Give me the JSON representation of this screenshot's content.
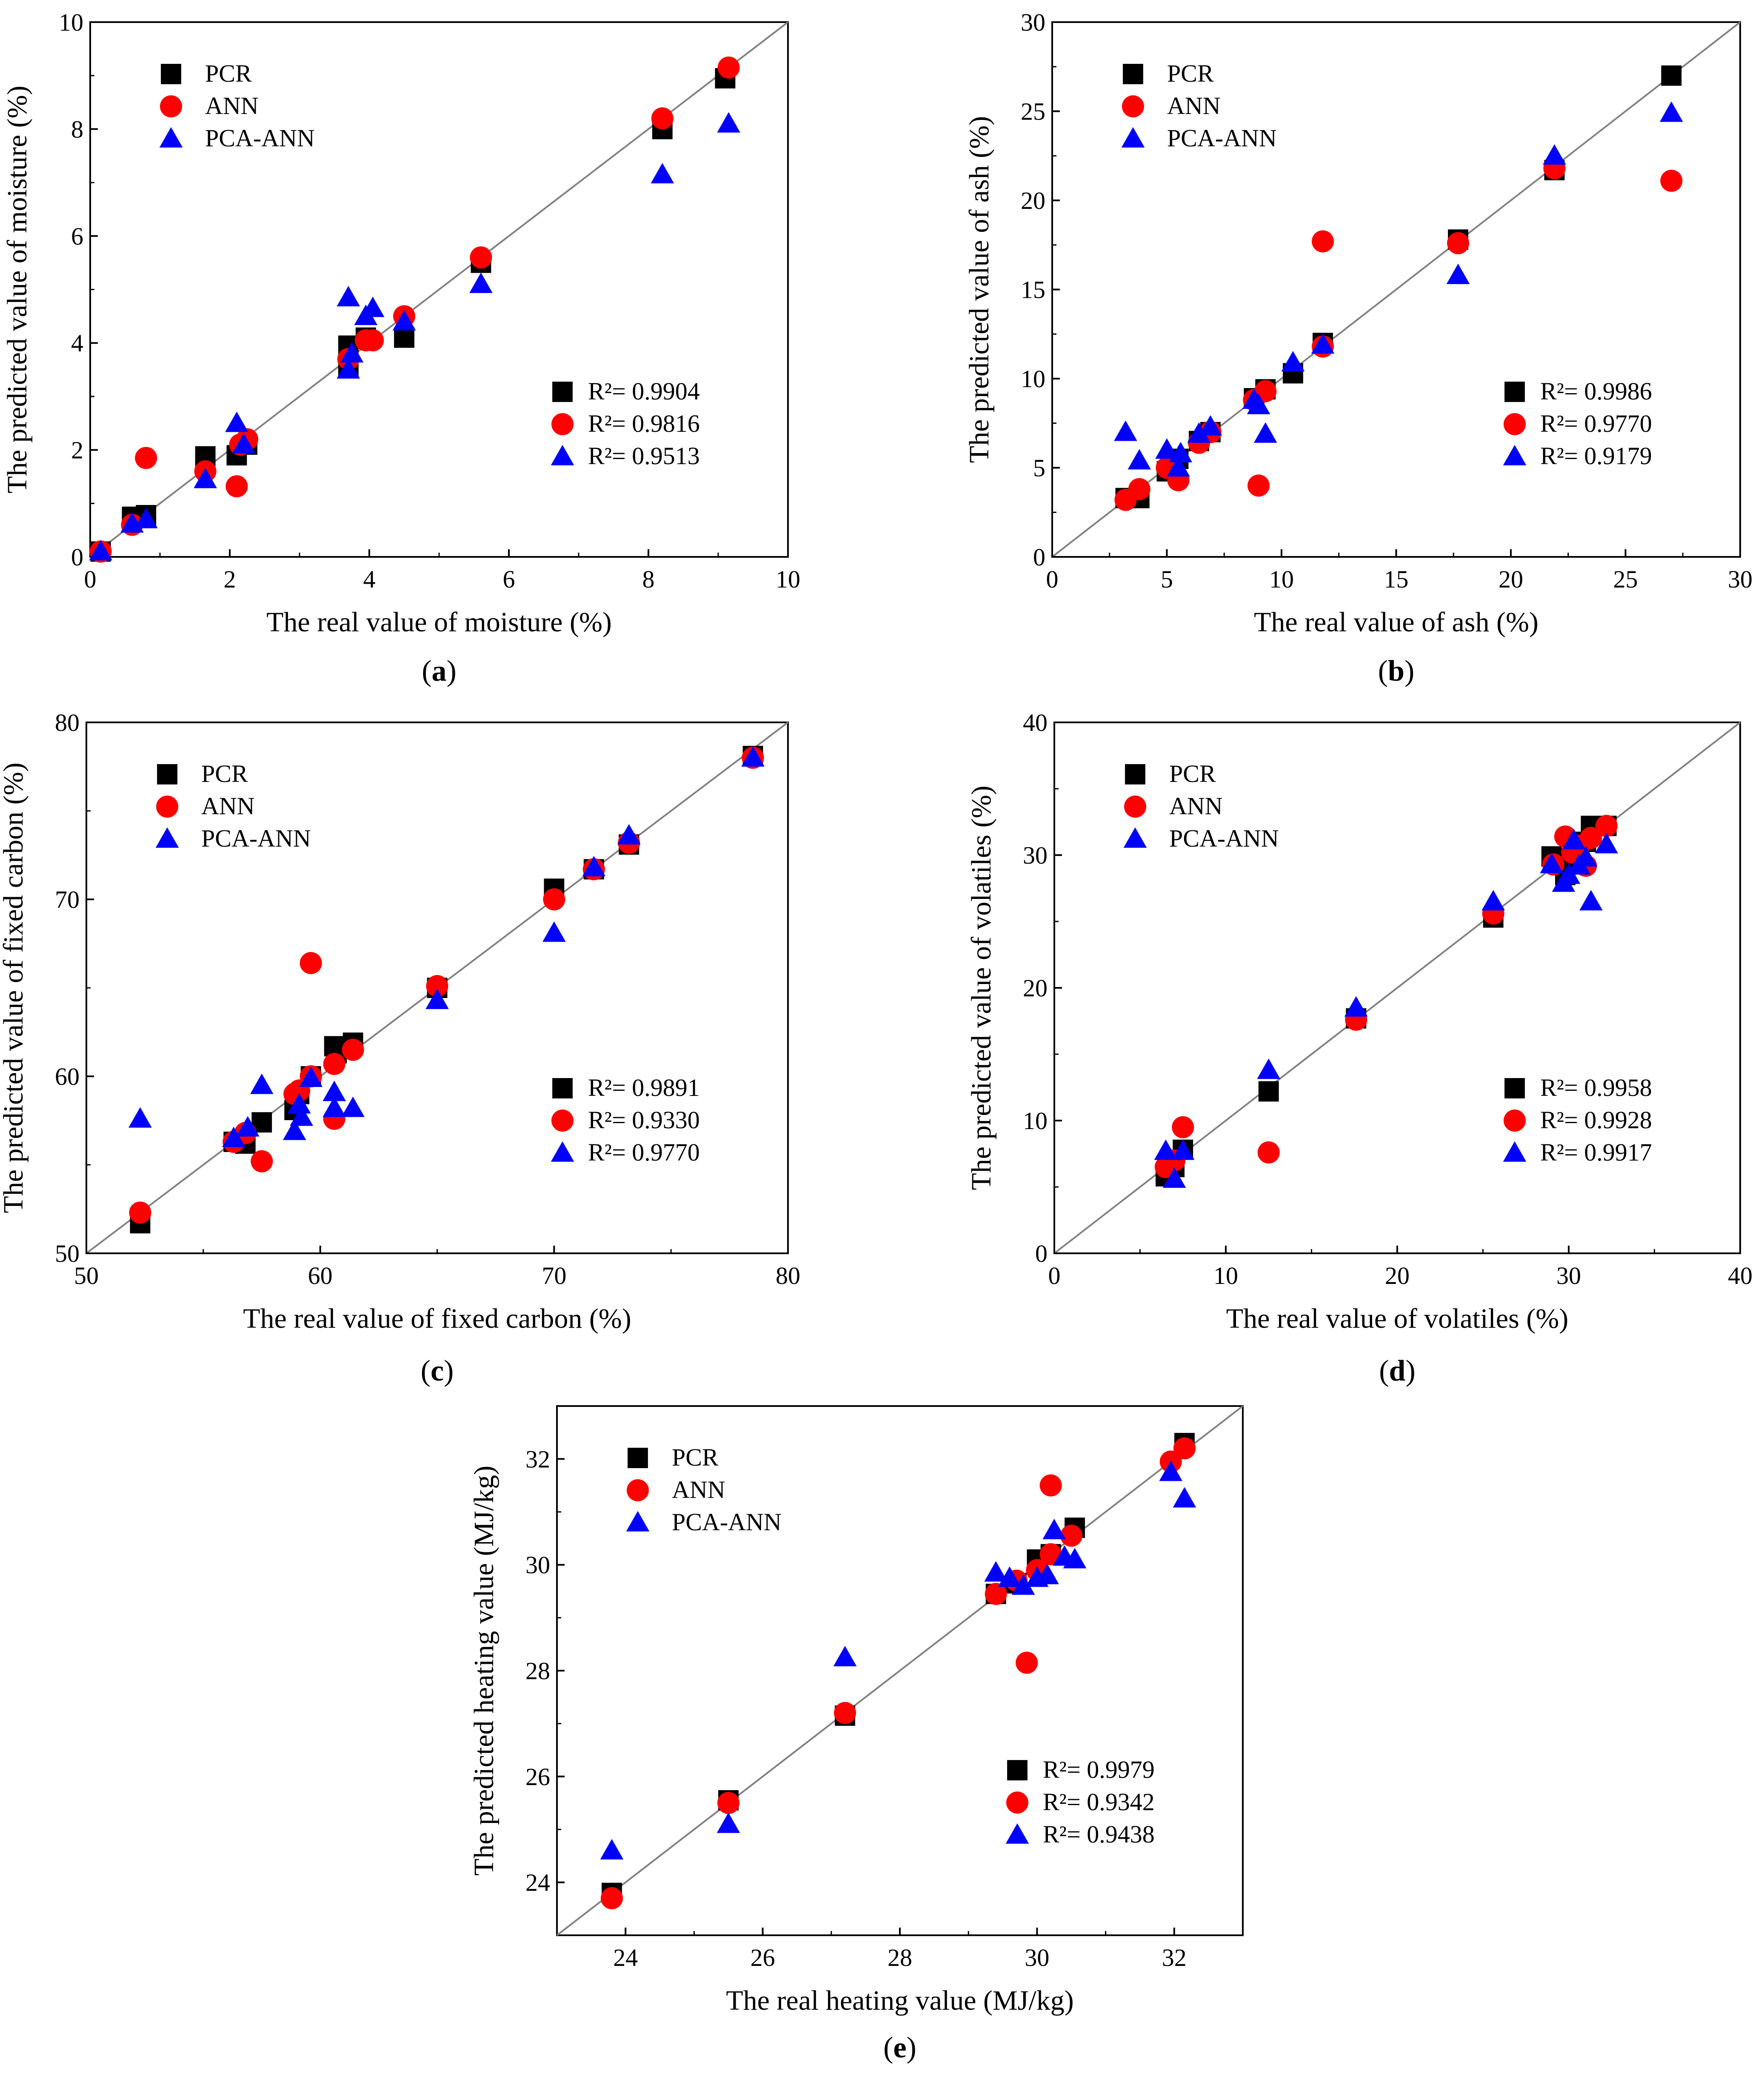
{
  "figure": {
    "colors": {
      "PCR": "#000000",
      "ANN": "#ff0000",
      "PCA-ANN": "#0000ff",
      "identity_line": "#808080"
    },
    "marker_shapes": {
      "PCR": "square",
      "ANN": "circle",
      "PCA-ANN": "triangle"
    }
  },
  "chart_data": [
    {
      "type": "scatter",
      "caption": "a",
      "xlabel": "The real value of moisture (%)",
      "ylabel": "The predicted value of moisture (%)",
      "xlim": [
        0,
        10
      ],
      "ylim": [
        0,
        10
      ],
      "xticks": [
        "0",
        "2",
        "4",
        "6",
        "8",
        "10"
      ],
      "yticks": [
        "0",
        "2",
        "4",
        "6",
        "8",
        "10"
      ],
      "legend": [
        "PCR",
        "ANN",
        "PCA-ANN"
      ],
      "r2": [
        "R²= 0.9904",
        "R²= 0.9816",
        "R²= 0.9513"
      ],
      "series": [
        {
          "name": "PCR",
          "points": [
            [
              0.15,
              0.1
            ],
            [
              0.6,
              0.75
            ],
            [
              0.8,
              0.78
            ],
            [
              1.65,
              1.88
            ],
            [
              2.1,
              1.9
            ],
            [
              2.25,
              2.1
            ],
            [
              3.7,
              3.95
            ],
            [
              3.7,
              3.55
            ],
            [
              3.95,
              4.1
            ],
            [
              4.5,
              4.1
            ],
            [
              5.6,
              5.5
            ],
            [
              8.2,
              8.0
            ],
            [
              9.1,
              8.95
            ]
          ]
        },
        {
          "name": "ANN",
          "points": [
            [
              0.15,
              0.1
            ],
            [
              0.6,
              0.6
            ],
            [
              0.8,
              1.85
            ],
            [
              1.65,
              1.6
            ],
            [
              2.1,
              1.32
            ],
            [
              2.15,
              2.1
            ],
            [
              2.25,
              2.2
            ],
            [
              3.7,
              3.7
            ],
            [
              3.95,
              4.05
            ],
            [
              4.05,
              4.05
            ],
            [
              4.5,
              4.5
            ],
            [
              5.6,
              5.6
            ],
            [
              8.2,
              8.2
            ],
            [
              9.15,
              9.15
            ]
          ]
        },
        {
          "name": "PCA-ANN",
          "points": [
            [
              0.15,
              0.1
            ],
            [
              0.6,
              0.62
            ],
            [
              0.8,
              0.7
            ],
            [
              1.65,
              1.45
            ],
            [
              2.1,
              2.5
            ],
            [
              2.2,
              2.1
            ],
            [
              3.7,
              4.85
            ],
            [
              3.7,
              3.5
            ],
            [
              3.75,
              3.8
            ],
            [
              3.95,
              4.5
            ],
            [
              4.05,
              4.65
            ],
            [
              4.5,
              4.4
            ],
            [
              5.6,
              5.1
            ],
            [
              8.2,
              7.15
            ],
            [
              9.15,
              8.1
            ]
          ]
        }
      ]
    },
    {
      "type": "scatter",
      "caption": "b",
      "xlabel": "The real value of ash (%)",
      "ylabel": "The predicted value of ash (%)",
      "xlim": [
        0,
        30
      ],
      "ylim": [
        0,
        30
      ],
      "xticks": [
        "0",
        "5",
        "10",
        "15",
        "20",
        "25",
        "30"
      ],
      "yticks": [
        "0",
        "5",
        "10",
        "15",
        "20",
        "25",
        "30"
      ],
      "legend": [
        "PCR",
        "ANN",
        "PCA-ANN"
      ],
      "r2": [
        "R²= 0.9986",
        "R²= 0.9770",
        "R²= 0.9179"
      ],
      "series": [
        {
          "name": "PCR",
          "points": [
            [
              3.2,
              3.3
            ],
            [
              3.8,
              3.3
            ],
            [
              5.0,
              4.8
            ],
            [
              5.5,
              5.5
            ],
            [
              6.4,
              6.5
            ],
            [
              6.9,
              7.0
            ],
            [
              8.8,
              8.9
            ],
            [
              9.3,
              9.4
            ],
            [
              10.5,
              10.3
            ],
            [
              11.8,
              12.0
            ],
            [
              17.7,
              17.8
            ],
            [
              21.9,
              21.7
            ],
            [
              27.0,
              27.0
            ]
          ]
        },
        {
          "name": "ANN",
          "points": [
            [
              3.2,
              3.2
            ],
            [
              3.8,
              3.8
            ],
            [
              5.0,
              5.0
            ],
            [
              5.5,
              4.3
            ],
            [
              6.4,
              6.4
            ],
            [
              6.9,
              7.0
            ],
            [
              8.8,
              8.8
            ],
            [
              9.0,
              4.0
            ],
            [
              9.3,
              9.3
            ],
            [
              11.8,
              17.7
            ],
            [
              11.8,
              11.8
            ],
            [
              17.7,
              17.6
            ],
            [
              21.9,
              21.8
            ],
            [
              27.0,
              21.1
            ]
          ]
        },
        {
          "name": "PCA-ANN",
          "points": [
            [
              3.2,
              7.0
            ],
            [
              3.8,
              5.4
            ],
            [
              5.0,
              6.0
            ],
            [
              5.5,
              5.0
            ],
            [
              5.6,
              5.8
            ],
            [
              6.4,
              6.9
            ],
            [
              6.9,
              7.3
            ],
            [
              8.8,
              8.8
            ],
            [
              9.0,
              8.5
            ],
            [
              9.3,
              6.9
            ],
            [
              10.5,
              10.9
            ],
            [
              11.8,
              11.9
            ],
            [
              17.7,
              15.8
            ],
            [
              21.9,
              22.5
            ],
            [
              27.0,
              24.9
            ]
          ]
        }
      ]
    },
    {
      "type": "scatter",
      "caption": "c",
      "xlabel": "The real value of fixed carbon (%)",
      "ylabel": "The predicted value of fixed carbon (%)",
      "xlim": [
        50,
        80
      ],
      "ylim": [
        50,
        80
      ],
      "xticks": [
        "50",
        "60",
        "70",
        "80"
      ],
      "yticks": [
        "50",
        "60",
        "70",
        "80"
      ],
      "legend": [
        "PCR",
        "ANN",
        "PCA-ANN"
      ],
      "r2": [
        "R²= 0.9891",
        "R²= 0.9330",
        "R²= 0.9770"
      ],
      "series": [
        {
          "name": "PCR",
          "points": [
            [
              52.3,
              51.7
            ],
            [
              56.3,
              56.3
            ],
            [
              56.8,
              56.2
            ],
            [
              57.5,
              57.4
            ],
            [
              58.9,
              58.1
            ],
            [
              59.1,
              59.0
            ],
            [
              59.6,
              60.0
            ],
            [
              60.6,
              61.7
            ],
            [
              60.7,
              61.3
            ],
            [
              61.4,
              61.9
            ],
            [
              65.0,
              65.0
            ],
            [
              70.0,
              70.6
            ],
            [
              71.7,
              71.7
            ],
            [
              73.2,
              73.1
            ],
            [
              78.5,
              78.1
            ]
          ]
        },
        {
          "name": "ANN",
          "points": [
            [
              52.3,
              52.3
            ],
            [
              56.3,
              56.3
            ],
            [
              56.8,
              56.8
            ],
            [
              57.5,
              55.2
            ],
            [
              58.9,
              59.0
            ],
            [
              59.1,
              59.2
            ],
            [
              59.6,
              66.4
            ],
            [
              59.6,
              60.0
            ],
            [
              60.6,
              60.7
            ],
            [
              60.6,
              57.6
            ],
            [
              61.4,
              61.5
            ],
            [
              65.0,
              65.1
            ],
            [
              70.0,
              70.0
            ],
            [
              71.7,
              71.7
            ],
            [
              73.2,
              73.2
            ],
            [
              78.5,
              78.0
            ]
          ]
        },
        {
          "name": "PCA-ANN",
          "points": [
            [
              52.3,
              57.6
            ],
            [
              56.3,
              56.5
            ],
            [
              56.9,
              57.1
            ],
            [
              57.5,
              59.5
            ],
            [
              58.9,
              56.9
            ],
            [
              59.1,
              58.4
            ],
            [
              59.2,
              57.7
            ],
            [
              59.6,
              59.9
            ],
            [
              60.6,
              59.1
            ],
            [
              60.6,
              58.2
            ],
            [
              61.4,
              58.2
            ],
            [
              65.0,
              64.3
            ],
            [
              70.0,
              68.1
            ],
            [
              71.7,
              71.8
            ],
            [
              73.2,
              73.6
            ],
            [
              78.5,
              78.0
            ]
          ]
        }
      ]
    },
    {
      "type": "scatter",
      "caption": "d",
      "xlabel": "The real value of volatiles (%)",
      "ylabel": "The predicted value of volatiles (%)",
      "xlim": [
        0,
        40
      ],
      "ylim": [
        0,
        40
      ],
      "xticks": [
        "0",
        "10",
        "20",
        "30",
        "40"
      ],
      "yticks": [
        "0",
        "10",
        "20",
        "30",
        "40"
      ],
      "legend": [
        "PCR",
        "ANN",
        "PCA-ANN"
      ],
      "r2": [
        "R²= 0.9958",
        "R²= 0.9928",
        "R²= 0.9917"
      ],
      "series": [
        {
          "name": "PCR",
          "points": [
            [
              6.5,
              5.8
            ],
            [
              7.0,
              6.5
            ],
            [
              7.5,
              7.8
            ],
            [
              12.5,
              12.2
            ],
            [
              17.6,
              17.7
            ],
            [
              25.6,
              25.3
            ],
            [
              29.0,
              29.9
            ],
            [
              29.8,
              28.5
            ],
            [
              30.2,
              29.6
            ],
            [
              30.6,
              30.8
            ],
            [
              31.0,
              31.0
            ],
            [
              31.3,
              32.2
            ],
            [
              32.2,
              32.2
            ]
          ]
        },
        {
          "name": "ANN",
          "points": [
            [
              6.5,
              6.5
            ],
            [
              7.0,
              7.0
            ],
            [
              7.5,
              9.5
            ],
            [
              12.5,
              7.6
            ],
            [
              17.6,
              17.6
            ],
            [
              25.6,
              25.6
            ],
            [
              29.1,
              29.3
            ],
            [
              29.8,
              31.4
            ],
            [
              30.2,
              30.2
            ],
            [
              30.6,
              30.7
            ],
            [
              31.0,
              29.2
            ],
            [
              31.3,
              31.3
            ],
            [
              32.2,
              32.2
            ]
          ]
        },
        {
          "name": "PCA-ANN",
          "points": [
            [
              6.5,
              7.7
            ],
            [
              7.0,
              5.6
            ],
            [
              7.5,
              7.7
            ],
            [
              12.5,
              13.8
            ],
            [
              17.6,
              18.5
            ],
            [
              25.6,
              26.5
            ],
            [
              29.0,
              29.3
            ],
            [
              29.7,
              27.9
            ],
            [
              30.0,
              28.5
            ],
            [
              30.3,
              31.1
            ],
            [
              30.6,
              29.2
            ],
            [
              31.0,
              29.8
            ],
            [
              31.3,
              26.5
            ],
            [
              32.2,
              30.8
            ]
          ]
        }
      ]
    },
    {
      "type": "scatter",
      "caption": "e",
      "xlabel": "The real heating value (MJ/kg)",
      "ylabel": "The predicted heating value (MJ/kg)",
      "xlim": [
        23,
        33
      ],
      "ylim": [
        23,
        33
      ],
      "xticks": [
        "24",
        "26",
        "28",
        "30",
        "32"
      ],
      "yticks": [
        "24",
        "26",
        "28",
        "30",
        "32"
      ],
      "legend": [
        "PCR",
        "ANN",
        "PCA-ANN"
      ],
      "r2": [
        "R²= 0.9979",
        "R²= 0.9342",
        "R²= 0.9438"
      ],
      "series": [
        {
          "name": "PCR",
          "points": [
            [
              23.8,
              23.8
            ],
            [
              25.5,
              25.55
            ],
            [
              27.2,
              27.15
            ],
            [
              29.4,
              29.45
            ],
            [
              29.7,
              29.65
            ],
            [
              30.0,
              30.1
            ],
            [
              30.2,
              30.2
            ],
            [
              30.55,
              30.7
            ],
            [
              32.15,
              32.3
            ]
          ]
        },
        {
          "name": "ANN",
          "points": [
            [
              23.8,
              23.7
            ],
            [
              25.5,
              25.5
            ],
            [
              27.2,
              27.2
            ],
            [
              29.4,
              29.45
            ],
            [
              29.7,
              29.7
            ],
            [
              29.85,
              28.15
            ],
            [
              30.0,
              29.9
            ],
            [
              30.2,
              31.5
            ],
            [
              30.2,
              30.2
            ],
            [
              30.5,
              30.55
            ],
            [
              31.95,
              31.95
            ],
            [
              32.15,
              32.2
            ]
          ]
        },
        {
          "name": "PCA-ANN",
          "points": [
            [
              23.8,
              24.6
            ],
            [
              25.5,
              25.1
            ],
            [
              27.2,
              28.25
            ],
            [
              29.4,
              29.85
            ],
            [
              29.6,
              29.75
            ],
            [
              29.8,
              29.6
            ],
            [
              30.0,
              29.75
            ],
            [
              30.15,
              29.8
            ],
            [
              30.25,
              30.65
            ],
            [
              30.4,
              30.15
            ],
            [
              30.55,
              30.1
            ],
            [
              31.95,
              31.75
            ],
            [
              32.15,
              31.25
            ]
          ]
        }
      ]
    }
  ]
}
